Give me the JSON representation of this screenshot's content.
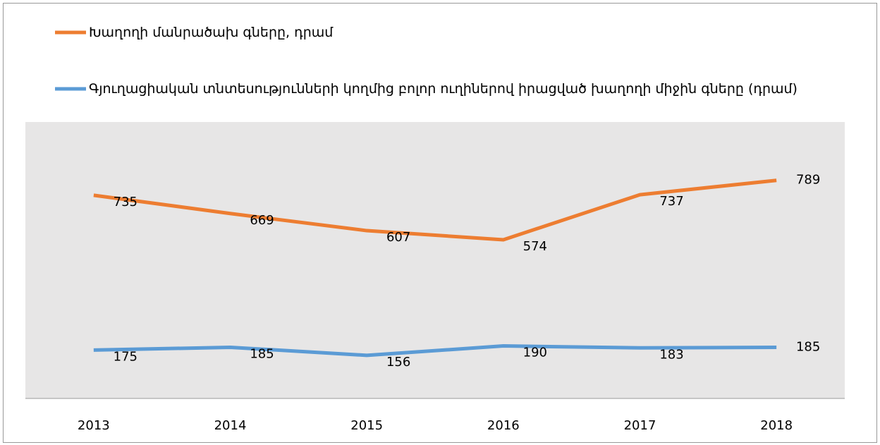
{
  "chart_data": {
    "type": "line",
    "categories": [
      "2013",
      "2014",
      "2015",
      "2016",
      "2017",
      "2018"
    ],
    "series": [
      {
        "name": "Խաղողի մանրածախ գները, դրամ",
        "color": "#ed7d31",
        "values": [
          735,
          669,
          607,
          574,
          737,
          789
        ]
      },
      {
        "name": "Գյուղացիական տնտեսությունների կողմից բոլոր ուղիներով իրացված խաղողի միջին գները (դրամ)",
        "color": "#5b9bd5",
        "values": [
          175,
          185,
          156,
          190,
          183,
          185
        ]
      }
    ],
    "ylim": [
      0,
      1000
    ]
  }
}
